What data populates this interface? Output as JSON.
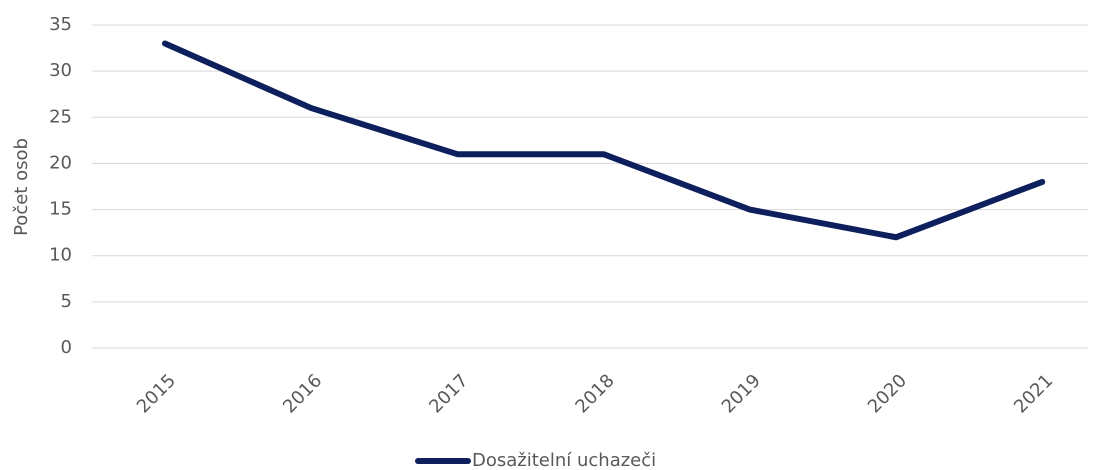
{
  "chart_data": {
    "type": "line",
    "y_label": "Počet osob",
    "categories": [
      "2015",
      "2016",
      "2017",
      "2018",
      "2019",
      "2020",
      "2021"
    ],
    "series": [
      {
        "name": "Dosažitelní uchazeči",
        "color": "#0d1f5c",
        "values": [
          33,
          26,
          21,
          21,
          15,
          12,
          18
        ]
      }
    ],
    "ylim": [
      0,
      35
    ],
    "yticks": [
      0,
      5,
      10,
      15,
      20,
      25,
      30,
      35
    ],
    "grid": true,
    "legend": "bottom"
  }
}
